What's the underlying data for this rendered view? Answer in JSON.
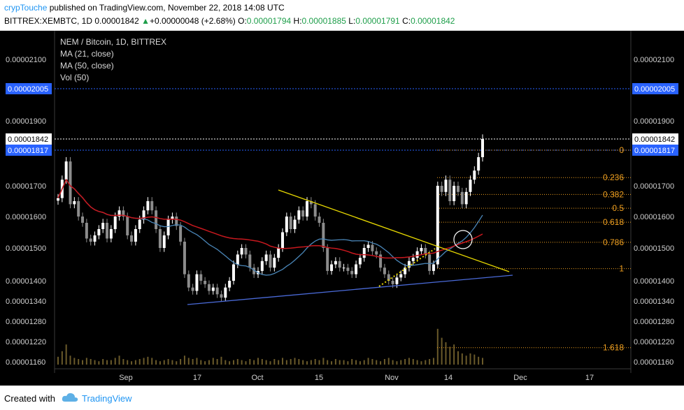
{
  "header": {
    "author": "crypTouche",
    "published": "published on TradingView.com, November 22, 2018 14:08 UTC",
    "symbol": "BITTREX:XEMBTC, 1D",
    "last": "0.00001842",
    "change_arrow": "▲",
    "change": "+0.00000048 (+2.68%)",
    "o_label": "O:",
    "o_value": "0.00001794",
    "h_label": "H:",
    "h_value": "0.00001885",
    "l_label": "L:",
    "l_value": "0.00001791",
    "c_label": "C:",
    "c_value": "0.00001842"
  },
  "footer": {
    "created_with": "Created with",
    "brand": "TradingView"
  },
  "colors": {
    "background": "#000000",
    "candle_up": "#ffffff",
    "candle_down": "#8c8c8c",
    "ma21": "#4a86b8",
    "ma50": "#c8181e",
    "volume": "#6a5a2a",
    "trendline_upper": "#e6d700",
    "trendline_lower": "#4a6ad8",
    "fib": "#f0a020",
    "label_blue": "#2962ff"
  },
  "chart_data": {
    "type": "candlestick",
    "legend": [
      "NEM / Bitcoin, 1D, BITTREX",
      "MA (21, close)",
      "MA (50, close)",
      "Vol (50)"
    ],
    "y_ticks": [
      "0.00002100",
      "0.00001900",
      "0.00001700",
      "0.00001600",
      "0.00001500",
      "0.00001400",
      "0.00001340",
      "0.00001280",
      "0.00001220",
      "0.00001160"
    ],
    "x_ticks": [
      "Sep",
      "17",
      "Oct",
      "15",
      "Nov",
      "14",
      "Dec",
      "17"
    ],
    "price_labels": {
      "resistance": "0.00002005",
      "last_close": "0.00001842",
      "fib_zero": "0.00001817"
    },
    "fib_levels": [
      {
        "label": "0",
        "price": 1.817e-05
      },
      {
        "label": "0.236",
        "price": 1.727e-05
      },
      {
        "label": "0.382",
        "price": 1.672e-05
      },
      {
        "label": "0.5",
        "price": 1.627e-05
      },
      {
        "label": "0.618",
        "price": 1.582e-05
      },
      {
        "label": "0.786",
        "price": 1.518e-05
      },
      {
        "label": "1",
        "price": 1.437e-05
      },
      {
        "label": "1.618",
        "price": 1.202e-05
      }
    ],
    "closes": [
      1.66e-05,
      1.72e-05,
      1.78e-05,
      1.64e-05,
      1.65e-05,
      1.6e-05,
      1.58e-05,
      1.53e-05,
      1.52e-05,
      1.54e-05,
      1.56e-05,
      1.58e-05,
      1.53e-05,
      1.56e-05,
      1.6e-05,
      1.62e-05,
      1.6e-05,
      1.54e-05,
      1.52e-05,
      1.56e-05,
      1.59e-05,
      1.62e-05,
      1.65e-05,
      1.62e-05,
      1.56e-05,
      1.5e-05,
      1.54e-05,
      1.59e-05,
      1.6e-05,
      1.57e-05,
      1.52e-05,
      1.42e-05,
      1.38e-05,
      1.37e-05,
      1.42e-05,
      1.4e-05,
      1.39e-05,
      1.37e-05,
      1.38e-05,
      1.36e-05,
      1.35e-05,
      1.38e-05,
      1.4e-05,
      1.45e-05,
      1.48e-05,
      1.5e-05,
      1.48e-05,
      1.44e-05,
      1.42e-05,
      1.43e-05,
      1.46e-05,
      1.48e-05,
      1.44e-05,
      1.47e-05,
      1.5e-05,
      1.55e-05,
      1.6e-05,
      1.56e-05,
      1.59e-05,
      1.62e-05,
      1.6e-05,
      1.65e-05,
      1.64e-05,
      1.6e-05,
      1.58e-05,
      1.5e-05,
      1.43e-05,
      1.45e-05,
      1.46e-05,
      1.44e-05,
      1.44e-05,
      1.43e-05,
      1.42e-05,
      1.45e-05,
      1.47e-05,
      1.5e-05,
      1.51e-05,
      1.49e-05,
      1.48e-05,
      1.44e-05,
      1.42e-05,
      1.4e-05,
      1.39e-05,
      1.41e-05,
      1.42e-05,
      1.44e-05,
      1.46e-05,
      1.47e-05,
      1.49e-05,
      1.5e-05,
      1.48e-05,
      1.43e-05,
      1.45e-05,
      1.7e-05,
      1.68e-05,
      1.72e-05,
      1.65e-05,
      1.7e-05,
      1.68e-05,
      1.64e-05,
      1.68e-05,
      1.72e-05,
      1.75e-05,
      1.794e-05,
      1.842e-05
    ],
    "volumes": [
      0.35,
      0.6,
      0.9,
      0.4,
      0.3,
      0.25,
      0.2,
      0.3,
      0.25,
      0.2,
      0.15,
      0.25,
      0.2,
      0.2,
      0.3,
      0.4,
      0.25,
      0.2,
      0.15,
      0.2,
      0.25,
      0.3,
      0.35,
      0.3,
      0.2,
      0.15,
      0.2,
      0.25,
      0.2,
      0.15,
      0.25,
      0.4,
      0.3,
      0.25,
      0.3,
      0.2,
      0.15,
      0.2,
      0.3,
      0.25,
      0.35,
      0.2,
      0.15,
      0.2,
      0.25,
      0.2,
      0.15,
      0.25,
      0.2,
      0.3,
      0.25,
      0.2,
      0.15,
      0.25,
      0.2,
      0.3,
      0.2,
      0.25,
      0.3,
      0.25,
      0.2,
      0.15,
      0.2,
      0.25,
      0.2,
      0.3,
      0.2,
      0.15,
      0.25,
      0.2,
      0.2,
      0.15,
      0.25,
      0.2,
      0.15,
      0.2,
      0.3,
      0.25,
      0.2,
      0.15,
      0.25,
      0.3,
      0.2,
      0.15,
      0.2,
      0.25,
      0.3,
      0.25,
      0.2,
      0.15,
      0.2,
      0.25,
      0.3,
      1.6,
      1.2,
      1.0,
      0.8,
      0.9,
      0.6,
      0.5,
      0.4,
      0.5,
      0.45,
      0.35,
      0.3
    ]
  }
}
